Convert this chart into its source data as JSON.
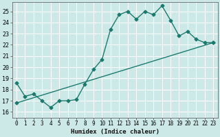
{
  "xlabel": "Humidex (Indice chaleur)",
  "background_color": "#cce9e7",
  "grid_color": "#ffffff",
  "line_color": "#1a7a6e",
  "xlim": [
    -0.5,
    23.5
  ],
  "ylim": [
    15.5,
    25.8
  ],
  "yticks": [
    16,
    17,
    18,
    19,
    20,
    21,
    22,
    23,
    24,
    25
  ],
  "xticks": [
    0,
    1,
    2,
    3,
    4,
    5,
    6,
    7,
    8,
    9,
    10,
    11,
    12,
    13,
    14,
    15,
    16,
    17,
    18,
    19,
    20,
    21,
    22,
    23
  ],
  "curve1_x": [
    0,
    1,
    2,
    3,
    4,
    5,
    6,
    7,
    8,
    9,
    10,
    11,
    12,
    13,
    14,
    15,
    16,
    17,
    18,
    19,
    20,
    21,
    22,
    23
  ],
  "curve1_y": [
    18.6,
    17.4,
    17.6,
    17.0,
    16.4,
    17.0,
    17.0,
    17.1,
    18.5,
    19.8,
    20.7,
    23.4,
    24.7,
    25.0,
    24.3,
    25.0,
    24.7,
    25.5,
    24.2,
    22.8,
    23.2,
    22.5,
    22.2,
    22.2
  ],
  "curve2_x": [
    0,
    23
  ],
  "curve2_y": [
    16.8,
    22.2
  ],
  "marker": "D",
  "marker_size": 2.5,
  "linewidth": 1.0
}
